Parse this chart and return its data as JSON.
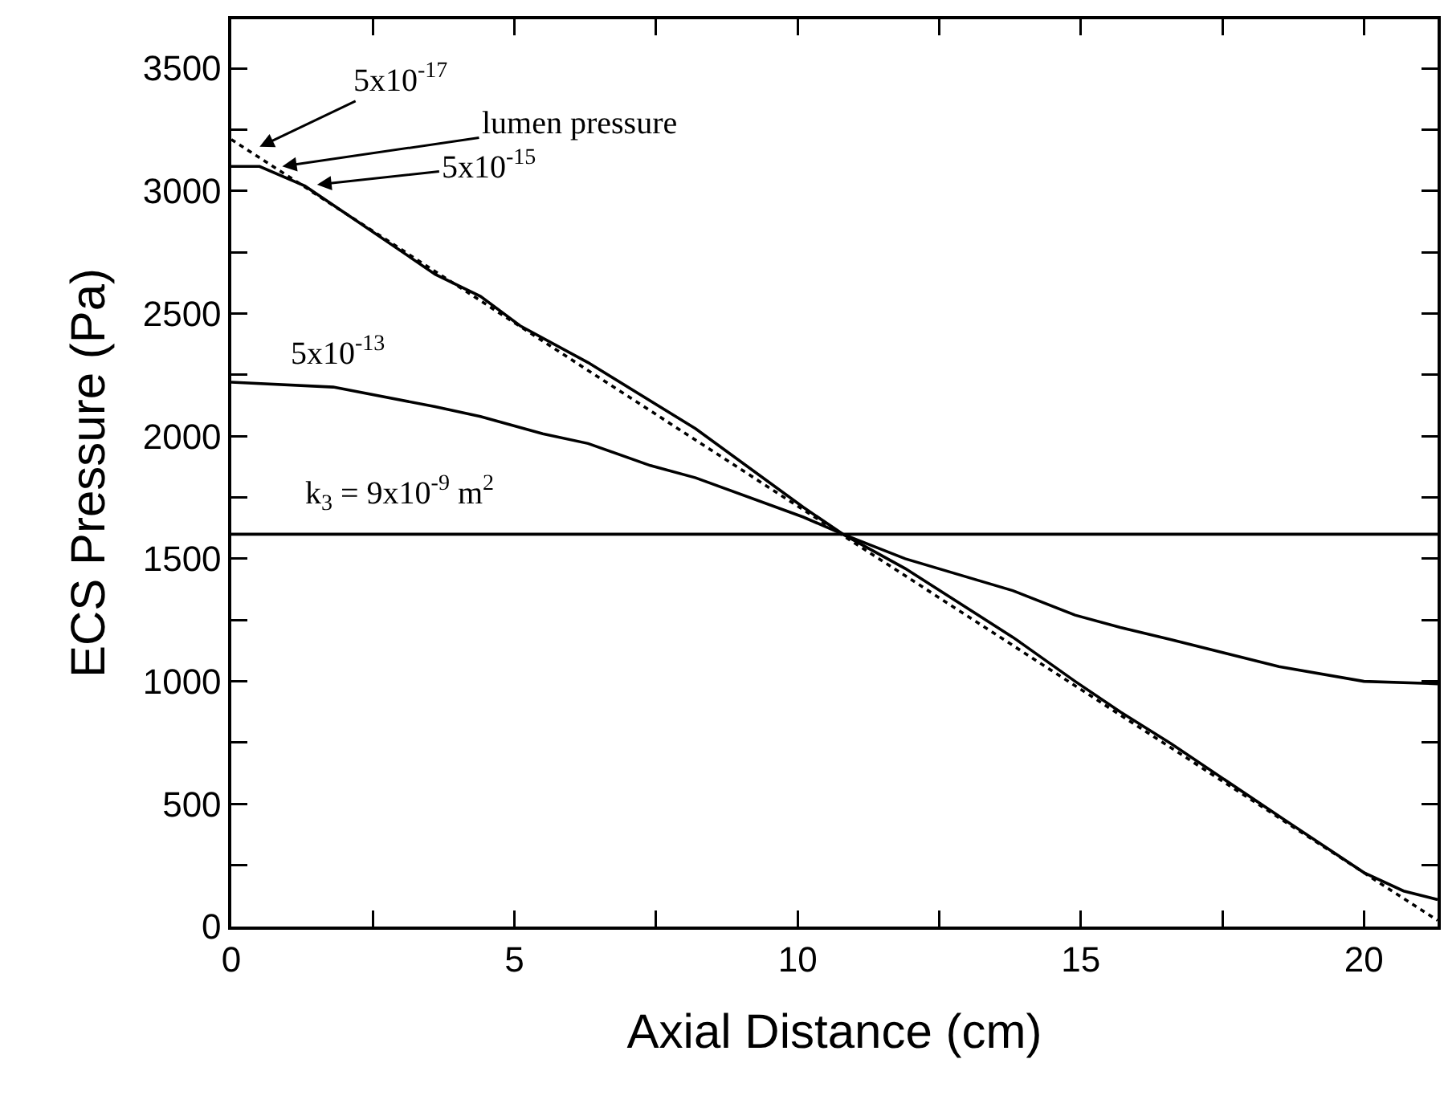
{
  "chart_data": {
    "type": "line",
    "xlabel": "Axial Distance (cm)",
    "ylabel": "ECS Pressure (Pa)",
    "xlim": [
      0,
      21.3
    ],
    "ylim": [
      0,
      3700
    ],
    "xticks": [
      0,
      {
        "value": 2.5,
        "label": null
      },
      5,
      {
        "value": 7.5,
        "label": null
      },
      10,
      {
        "value": 12.5,
        "label": null
      },
      15,
      {
        "value": 17.5,
        "label": null
      },
      20
    ],
    "yticks": [
      0,
      {
        "value": 250,
        "label": null
      },
      500,
      {
        "value": 750,
        "label": null
      },
      1000,
      {
        "value": 1250,
        "label": null
      },
      1500,
      {
        "value": 1750,
        "label": null
      },
      2000,
      {
        "value": 2250,
        "label": null
      },
      2500,
      {
        "value": 2750,
        "label": null
      },
      3000,
      {
        "value": 3250,
        "label": null
      },
      3500
    ],
    "grid": false,
    "marker": "none",
    "series": [
      {
        "color": "#000000",
        "line_style": "dotted",
        "x": [
          0,
          21.3
        ],
        "values": [
          3210,
          25
        ]
      },
      {
        "color": "#000000",
        "line_style": "solid",
        "x": [
          0,
          0.5,
          1.3,
          2.2,
          3.6,
          4.4,
          5.1,
          6.3,
          8.2,
          10.1,
          10.8,
          11.9,
          13.8,
          14.9,
          15.7,
          16.6,
          18.5,
          20,
          20.7,
          21.3
        ],
        "values": [
          3100,
          3100,
          3020,
          2880,
          2660,
          2570,
          2450,
          2300,
          2030,
          1710,
          1600,
          1460,
          1180,
          1000,
          875,
          745,
          450,
          220,
          145,
          110
        ]
      },
      {
        "color": "#000000",
        "line_style": "solid",
        "x": [
          0,
          1.8,
          3.6,
          4.4,
          5.5,
          6.3,
          7.4,
          8.2,
          10.1,
          10.8,
          11.9,
          13.8,
          14.9,
          15.7,
          16.6,
          18.5,
          20,
          21.3
        ],
        "values": [
          2220,
          2200,
          2120,
          2080,
          2010,
          1970,
          1880,
          1830,
          1670,
          1600,
          1500,
          1370,
          1270,
          1220,
          1170,
          1060,
          1000,
          990
        ]
      },
      {
        "color": "#000000",
        "line_style": "solid",
        "x": [
          0,
          21.3
        ],
        "values": [
          1600,
          1600
        ]
      }
    ],
    "annotations": [
      {
        "text": "5x10$^{-17}$",
        "x": 0.5,
        "y": 3180
      },
      {
        "text": "lumen pressure",
        "x": 0.9,
        "y": 3100
      },
      {
        "text": "5x10$^{-15}$",
        "x": 1.43,
        "y": 3023
      },
      "5x10$^{-13}$",
      "k$_{3}$ = 9x10$^{-9}$ m$^{2}$"
    ]
  }
}
